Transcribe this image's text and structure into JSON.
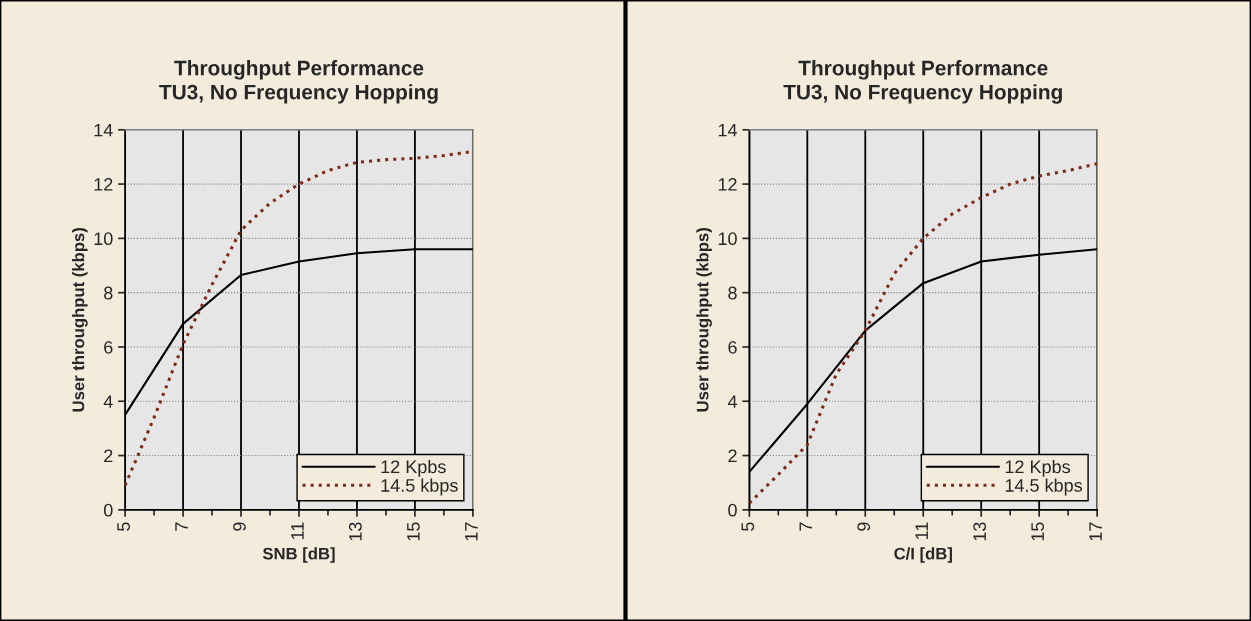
{
  "chart_data": [
    {
      "type": "line",
      "title": "Throughput Performance\nTU3, No Frequency Hopping",
      "xlabel": "SNB [dB]",
      "ylabel": "User throughput (kbps)",
      "xlim": [
        5,
        17
      ],
      "xticks": [
        5,
        7,
        9,
        11,
        13,
        15,
        17
      ],
      "ylim": [
        0,
        14
      ],
      "yticks": [
        0,
        2,
        4,
        6,
        8,
        10,
        12,
        14
      ],
      "grid": true,
      "legend": "bottom right",
      "series": [
        {
          "name": "12 Kpbs",
          "color": "#000000",
          "line_style": "solid",
          "x": [
            5,
            7,
            9,
            11,
            13,
            15,
            17
          ],
          "values": [
            3.5,
            6.85,
            8.65,
            9.15,
            9.45,
            9.6,
            9.6
          ]
        },
        {
          "name": "14.5 kbps",
          "color": "#7f2a14",
          "line_style": "dotted",
          "x": [
            5,
            6,
            7,
            8,
            9,
            10,
            11,
            12,
            13,
            14,
            15,
            16,
            17
          ],
          "values": [
            0.9,
            3.4,
            6.1,
            8.3,
            10.3,
            11.3,
            12.0,
            12.5,
            12.8,
            12.9,
            12.95,
            13.05,
            13.2
          ]
        }
      ]
    },
    {
      "type": "line",
      "title": "Throughput Performance\nTU3, No Frequency Hopping",
      "xlabel": "C/I [dB]",
      "ylabel": "User throughput (kbps)",
      "xlim": [
        5,
        17
      ],
      "xticks": [
        5,
        7,
        9,
        11,
        13,
        15,
        17
      ],
      "ylim": [
        0,
        14
      ],
      "yticks": [
        0,
        2,
        4,
        6,
        8,
        10,
        12,
        14
      ],
      "grid": true,
      "legend": "bottom right",
      "series": [
        {
          "name": "12 Kpbs",
          "color": "#000000",
          "line_style": "solid",
          "x": [
            5,
            7,
            9,
            11,
            13,
            15,
            17
          ],
          "values": [
            1.4,
            3.9,
            6.6,
            8.35,
            9.15,
            9.4,
            9.6
          ]
        },
        {
          "name": "14.5 kbps",
          "color": "#7f2a14",
          "line_style": "dotted",
          "x": [
            5,
            6,
            7,
            8,
            9,
            10,
            11,
            12,
            13,
            14,
            15,
            16,
            17
          ],
          "values": [
            0.25,
            1.3,
            2.4,
            5.0,
            6.6,
            8.7,
            10.0,
            10.9,
            11.5,
            12.0,
            12.3,
            12.5,
            12.75
          ]
        }
      ]
    }
  ]
}
